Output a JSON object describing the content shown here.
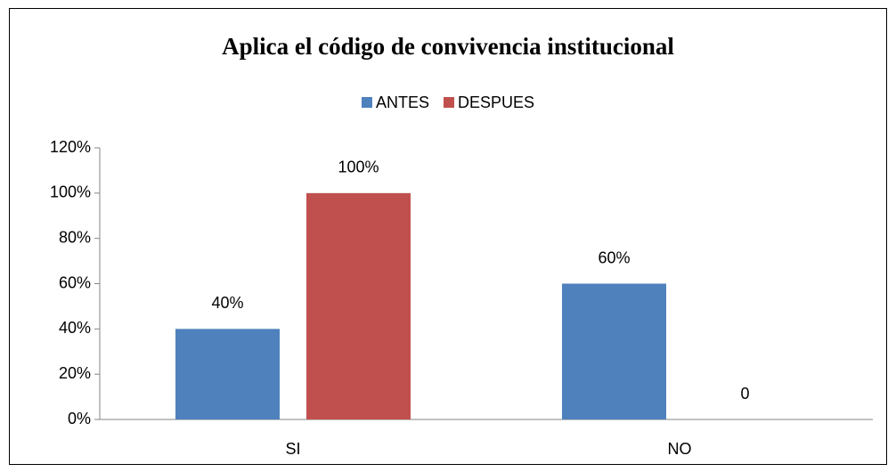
{
  "chart_data": {
    "type": "bar",
    "title": "Aplica el código de convivencia institucional",
    "categories": [
      "SI",
      "NO"
    ],
    "series": [
      {
        "name": "ANTES",
        "color": "#4f81bd",
        "values": [
          40,
          60
        ],
        "value_labels": [
          "40%",
          "60%"
        ]
      },
      {
        "name": "DESPUES",
        "color": "#c0504d",
        "values": [
          100,
          0
        ],
        "value_labels": [
          "100%",
          "0"
        ]
      }
    ],
    "ylim": [
      0,
      120
    ],
    "yticks": [
      {
        "value": 0,
        "label": "0%"
      },
      {
        "value": 20,
        "label": "20%"
      },
      {
        "value": 40,
        "label": "40%"
      },
      {
        "value": 60,
        "label": "60%"
      },
      {
        "value": 80,
        "label": "80%"
      },
      {
        "value": 100,
        "label": "100%"
      },
      {
        "value": 120,
        "label": "120%"
      }
    ],
    "legend": "top"
  }
}
